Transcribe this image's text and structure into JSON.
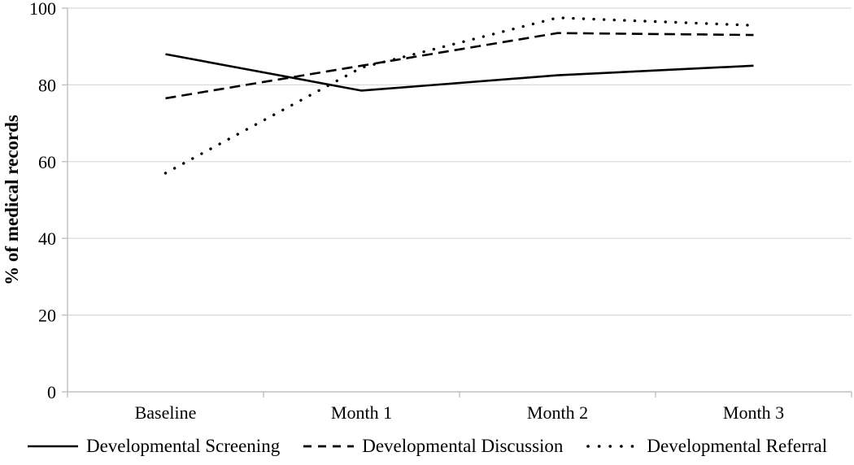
{
  "chart_data": {
    "type": "line",
    "title": "",
    "categories": [
      "Baseline",
      "Month 1",
      "Month 2",
      "Month 3"
    ],
    "series": [
      {
        "name": "Developmental Screening",
        "style": "solid",
        "values": [
          88,
          78.5,
          82.5,
          85
        ]
      },
      {
        "name": "Developmental Discussion",
        "style": "dashed",
        "values": [
          76.5,
          85,
          93.5,
          93
        ]
      },
      {
        "name": "Developmental Referral",
        "style": "dotted",
        "values": [
          57,
          84.5,
          97.5,
          95.5
        ]
      }
    ],
    "xlabel": "",
    "ylabel": "% of medical records",
    "yticks": [
      0,
      20,
      40,
      60,
      80,
      100
    ],
    "ylim": [
      0,
      100
    ],
    "grid": true,
    "legend_position": "bottom",
    "colors": {
      "line": "#000000",
      "axis": "#bfbfbf",
      "gridline": "#d9d9d9",
      "text": "#000000",
      "background": "#ffffff"
    }
  }
}
